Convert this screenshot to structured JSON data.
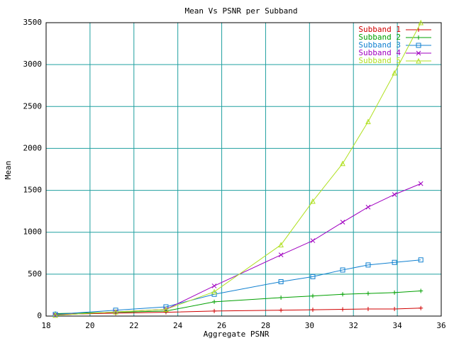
{
  "chart_data": {
    "type": "line",
    "title": "Mean Vs PSNR per Subband",
    "x_label": "Aggregate PSNR",
    "y_label": "Mean",
    "x": [
      18.42,
      21.17,
      23.46,
      25.66,
      28.7,
      30.15,
      31.51,
      32.67,
      33.87,
      35.07
    ],
    "series": [
      {
        "name": "Subband 1",
        "color": "#d00000",
        "marker": "plus",
        "values": [
          20,
          35,
          45,
          60,
          70,
          75,
          80,
          85,
          85,
          95
        ]
      },
      {
        "name": "Subband 2",
        "color": "#00a000",
        "marker": "plus",
        "values": [
          30,
          45,
          60,
          170,
          220,
          240,
          260,
          270,
          280,
          300
        ]
      },
      {
        "name": "Subband 3",
        "color": "#1080d0",
        "marker": "square",
        "values": [
          20,
          70,
          110,
          260,
          410,
          470,
          550,
          610,
          640,
          670
        ]
      },
      {
        "name": "Subband 4",
        "color": "#a000c0",
        "marker": "cross",
        "values": [
          10,
          50,
          80,
          360,
          730,
          900,
          1120,
          1300,
          1450,
          1580
        ]
      },
      {
        "name": "Subband 5",
        "color": "#b0e020",
        "marker": "triangle",
        "values": [
          10,
          50,
          80,
          290,
          850,
          1370,
          1820,
          2320,
          2900,
          3500
        ]
      }
    ],
    "xlim": [
      18,
      36
    ],
    "xticks": [
      18,
      20,
      22,
      24,
      26,
      28,
      30,
      32,
      34,
      36
    ],
    "ylim": [
      0,
      3500
    ],
    "yticks": [
      0,
      500,
      1000,
      1500,
      2000,
      2500,
      3000,
      3500
    ],
    "grid": true,
    "grid_color": "#20a0a0",
    "legend": "top-right"
  }
}
